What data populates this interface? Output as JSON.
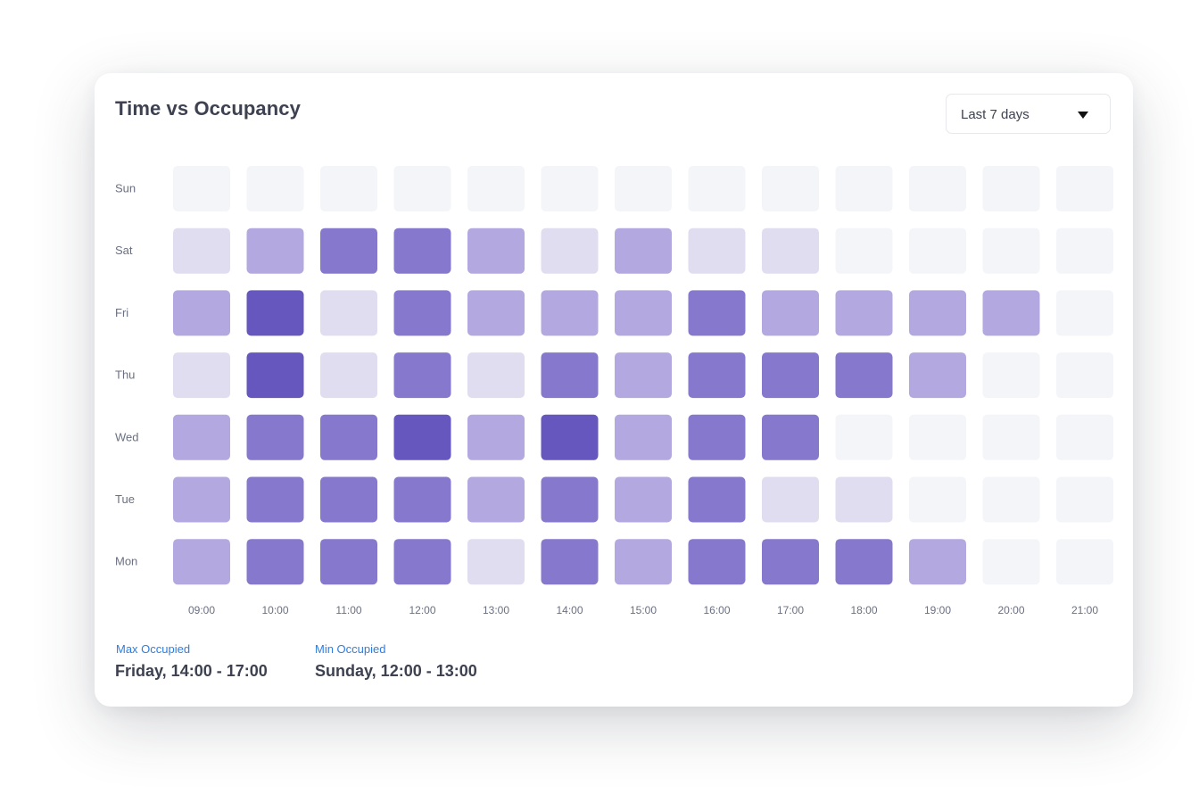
{
  "card": {
    "title": "Time vs Occupancy",
    "range_select": {
      "selected": "Last 7 days",
      "icon": "caret-down-icon"
    }
  },
  "stats": {
    "max_label": "Max Occupied",
    "max_value": "Friday, 14:00 - 17:00",
    "min_label": "Min Occupied",
    "min_value": "Sunday, 12:00 - 13:00"
  },
  "colors": {
    "level_0": "#f4f5f9",
    "level_1": "#e0ddf0",
    "level_2": "#b3a9e0",
    "level_3": "#8679cd",
    "level_4": "#6657be",
    "axis_text": "#6b7080",
    "accent": "#2f7de0"
  },
  "chart_data": {
    "type": "heatmap",
    "x": [
      "09:00",
      "10:00",
      "11:00",
      "12:00",
      "13:00",
      "14:00",
      "15:00",
      "16:00",
      "17:00",
      "18:00",
      "19:00",
      "20:00",
      "21:00"
    ],
    "y": [
      "Sun",
      "Sat",
      "Fri",
      "Thu",
      "Wed",
      "Tue",
      "Mon"
    ],
    "scale": [
      0,
      4
    ],
    "values": [
      [
        0,
        0,
        0,
        0,
        0,
        0,
        0,
        0,
        0,
        0,
        0,
        0,
        0
      ],
      [
        1,
        2,
        3,
        3,
        2,
        1,
        2,
        1,
        1,
        0,
        0,
        0,
        0
      ],
      [
        2,
        4,
        1,
        3,
        2,
        2,
        2,
        3,
        2,
        2,
        2,
        2,
        0
      ],
      [
        1,
        4,
        1,
        3,
        1,
        3,
        2,
        3,
        3,
        3,
        2,
        0,
        0
      ],
      [
        2,
        3,
        3,
        4,
        2,
        4,
        2,
        3,
        3,
        0,
        0,
        0,
        0
      ],
      [
        2,
        3,
        3,
        3,
        2,
        3,
        2,
        3,
        1,
        1,
        0,
        0,
        0
      ],
      [
        2,
        3,
        3,
        3,
        1,
        3,
        2,
        3,
        3,
        3,
        2,
        0,
        0
      ]
    ]
  }
}
